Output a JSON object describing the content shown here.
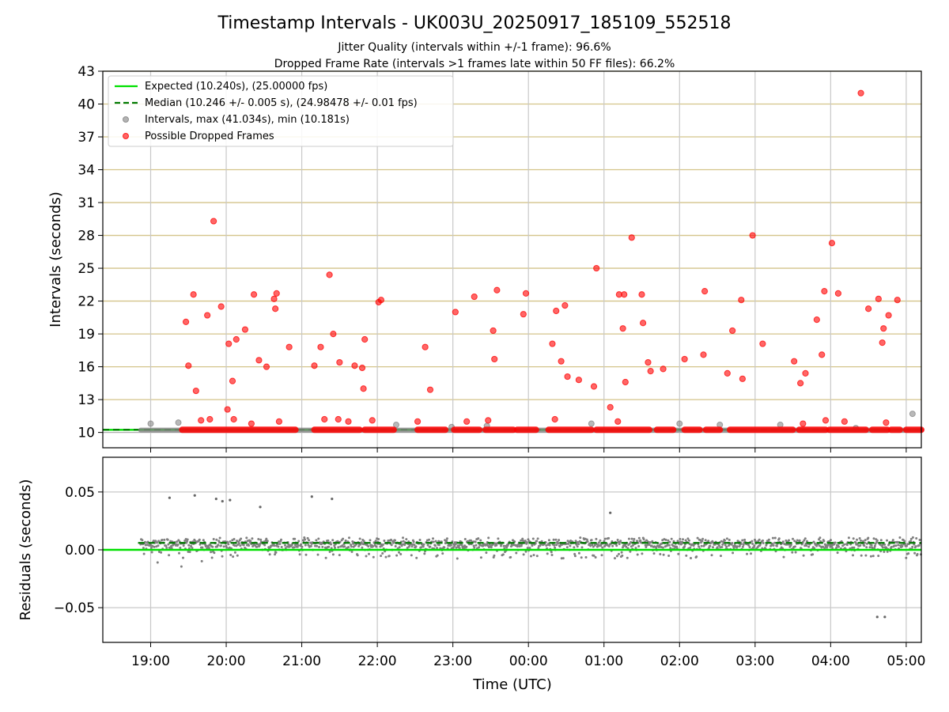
{
  "chart_data": [
    {
      "type": "scatter",
      "title": "Timestamp Intervals - UK003U_20250917_185109_552518",
      "subtitles": [
        "Jitter Quality (intervals within +/-1 frame): 96.6%",
        "Dropped Frame Rate (intervals >1 frames late within 50 FF files): 66.2%"
      ],
      "xlabel": "",
      "ylabel": "Intervals (seconds)",
      "ylim": [
        8.6,
        43
      ],
      "yticks": [
        10,
        13,
        16,
        19,
        22,
        25,
        28,
        31,
        34,
        37,
        40,
        43
      ],
      "xlim": [
        "2025-09-17 18:22",
        "2025-09-18 05:12"
      ],
      "xticks": [
        "19:00",
        "20:00",
        "21:00",
        "22:00",
        "23:00",
        "00:00",
        "01:00",
        "02:00",
        "03:00",
        "04:00",
        "05:00"
      ],
      "grid": true,
      "legend": {
        "placement": "top-left",
        "entries": [
          "Expected (10.240s), (25.00000 fps)",
          "Median (10.246 +/- 0.005 s), (24.98478 +/- 0.01 fps)",
          "Intervals, max (41.034s), min (10.181s)",
          "Possible Dropped Frames"
        ]
      },
      "lines": {
        "expected": 10.24,
        "median": 10.246
      },
      "series": [
        {
          "name": "Intervals, max (41.034s), min (10.181s)",
          "color": "#808080",
          "x": [
            "2025-09-17 19:00",
            "2025-09-17 19:22",
            "2025-09-17 22:15",
            "2025-09-17 22:59",
            "2025-09-17 23:27",
            "2025-09-18 00:50",
            "2025-09-18 02:00",
            "2025-09-18 02:32",
            "2025-09-18 03:20",
            "2025-09-18 04:20",
            "2025-09-18 05:05"
          ],
          "y": [
            10.8,
            10.9,
            10.7,
            10.5,
            10.6,
            10.8,
            10.8,
            10.7,
            10.7,
            10.4,
            11.7
          ]
        },
        {
          "name": "Possible Dropped Frames",
          "color": "#ff0000",
          "segments": [
            [
              "2025-09-17 19:25",
              "2025-09-17 20:55"
            ],
            [
              "2025-09-17 21:10",
              "2025-09-17 21:46"
            ],
            [
              "2025-09-17 21:50",
              "2025-09-17 22:13"
            ],
            [
              "2025-09-17 22:32",
              "2025-09-17 22:54"
            ],
            [
              "2025-09-17 23:01",
              "2025-09-17 23:21"
            ],
            [
              "2025-09-17 23:26",
              "2025-09-17 23:48"
            ],
            [
              "2025-09-17 23:51",
              "2025-09-18 00:06"
            ],
            [
              "2025-09-18 00:16",
              "2025-09-18 00:50"
            ],
            [
              "2025-09-18 00:54",
              "2025-09-18 01:36"
            ],
            [
              "2025-09-18 01:42",
              "2025-09-18 01:55"
            ],
            [
              "2025-09-18 02:04",
              "2025-09-18 02:16"
            ],
            [
              "2025-09-18 02:21",
              "2025-09-18 02:32"
            ],
            [
              "2025-09-18 02:40",
              "2025-09-18 03:30"
            ],
            [
              "2025-09-18 03:35",
              "2025-09-18 03:56"
            ],
            [
              "2025-09-18 03:59",
              "2025-09-18 04:28"
            ],
            [
              "2025-09-18 04:33",
              "2025-09-18 04:45"
            ],
            [
              "2025-09-18 04:48",
              "2025-09-18 04:55"
            ],
            [
              "2025-09-18 05:00",
              "2025-09-18 05:12"
            ]
          ],
          "segment_value": 10.24,
          "x": [
            "2025-09-17 19:28",
            "2025-09-17 19:30",
            "2025-09-17 19:34",
            "2025-09-17 19:36",
            "2025-09-17 19:40",
            "2025-09-17 19:45",
            "2025-09-17 19:47",
            "2025-09-17 19:50",
            "2025-09-17 19:56",
            "2025-09-17 20:01",
            "2025-09-17 20:02",
            "2025-09-17 20:05",
            "2025-09-17 20:06",
            "2025-09-17 20:08",
            "2025-09-17 20:15",
            "2025-09-17 20:20",
            "2025-09-17 20:22",
            "2025-09-17 20:26",
            "2025-09-17 20:32",
            "2025-09-17 20:38",
            "2025-09-17 20:39",
            "2025-09-17 20:40",
            "2025-09-17 20:42",
            "2025-09-17 20:50",
            "2025-09-17 21:10",
            "2025-09-17 21:15",
            "2025-09-17 21:18",
            "2025-09-17 21:22",
            "2025-09-17 21:25",
            "2025-09-17 21:29",
            "2025-09-17 21:30",
            "2025-09-17 21:37",
            "2025-09-17 21:42",
            "2025-09-17 21:48",
            "2025-09-17 21:49",
            "2025-09-17 21:50",
            "2025-09-17 21:56",
            "2025-09-17 22:01",
            "2025-09-17 22:03",
            "2025-09-17 22:32",
            "2025-09-17 22:38",
            "2025-09-17 22:42",
            "2025-09-17 23:02",
            "2025-09-17 23:11",
            "2025-09-17 23:17",
            "2025-09-17 23:28",
            "2025-09-17 23:32",
            "2025-09-17 23:33",
            "2025-09-17 23:35",
            "2025-09-17 23:56",
            "2025-09-17 23:58",
            "2025-09-18 00:19",
            "2025-09-18 00:21",
            "2025-09-18 00:22",
            "2025-09-18 00:26",
            "2025-09-18 00:29",
            "2025-09-18 00:31",
            "2025-09-18 00:40",
            "2025-09-18 00:52",
            "2025-09-18 00:54",
            "2025-09-18 01:05",
            "2025-09-18 01:11",
            "2025-09-18 01:12",
            "2025-09-18 01:15",
            "2025-09-18 01:16",
            "2025-09-18 01:17",
            "2025-09-18 01:22",
            "2025-09-18 01:30",
            "2025-09-18 01:31",
            "2025-09-18 01:35",
            "2025-09-18 01:37",
            "2025-09-18 01:47",
            "2025-09-18 02:04",
            "2025-09-18 02:19",
            "2025-09-18 02:20",
            "2025-09-18 02:38",
            "2025-09-18 02:42",
            "2025-09-18 02:49",
            "2025-09-18 02:50",
            "2025-09-18 02:58",
            "2025-09-18 03:06",
            "2025-09-18 03:31",
            "2025-09-18 03:36",
            "2025-09-18 03:38",
            "2025-09-18 03:40",
            "2025-09-18 03:49",
            "2025-09-18 03:53",
            "2025-09-18 03:55",
            "2025-09-18 03:56",
            "2025-09-18 04:01",
            "2025-09-18 04:06",
            "2025-09-18 04:11",
            "2025-09-18 04:24",
            "2025-09-18 04:30",
            "2025-09-18 04:38",
            "2025-09-18 04:41",
            "2025-09-18 04:42",
            "2025-09-18 04:44",
            "2025-09-18 04:46",
            "2025-09-18 04:53"
          ],
          "y": [
            20.1,
            16.1,
            22.6,
            13.8,
            11.1,
            20.7,
            11.2,
            29.3,
            21.5,
            12.1,
            18.1,
            14.7,
            11.2,
            18.5,
            19.4,
            10.8,
            22.6,
            16.6,
            16.0,
            22.2,
            21.3,
            22.7,
            11.0,
            17.8,
            16.1,
            17.8,
            11.2,
            24.4,
            19.0,
            11.2,
            16.4,
            11.0,
            16.1,
            15.9,
            14.0,
            18.5,
            11.1,
            21.9,
            22.1,
            11.0,
            17.8,
            13.9,
            21.0,
            11.0,
            22.4,
            11.1,
            19.3,
            16.7,
            23.0,
            20.8,
            22.7,
            18.1,
            11.2,
            21.1,
            16.5,
            21.6,
            15.1,
            14.8,
            14.2,
            25.0,
            12.3,
            11.0,
            22.6,
            19.5,
            22.6,
            14.6,
            27.8,
            22.6,
            20.0,
            16.4,
            15.6,
            15.8,
            16.7,
            17.1,
            22.9,
            15.4,
            19.3,
            22.1,
            14.9,
            28.0,
            18.1,
            16.5,
            14.5,
            10.8,
            15.4,
            20.3,
            17.1,
            22.9,
            11.1,
            27.3,
            22.7,
            11.0,
            41.0,
            21.3,
            22.2,
            18.2,
            19.5,
            10.9,
            20.7,
            22.1
          ]
        }
      ]
    },
    {
      "type": "scatter",
      "title": "",
      "xlabel": "Time (UTC)",
      "ylabel": "Residuals (seconds)",
      "ylim": [
        -0.08,
        0.08
      ],
      "yticks": [
        0.05,
        0.0,
        -0.05
      ],
      "ytick_labels": [
        "0.05",
        "0.00",
        "−0.05"
      ],
      "xlim": [
        "2025-09-17 18:22",
        "2025-09-18 05:12"
      ],
      "xticks": [
        "19:00",
        "20:00",
        "21:00",
        "22:00",
        "23:00",
        "00:00",
        "01:00",
        "02:00",
        "03:00",
        "04:00",
        "05:00"
      ],
      "grid": true,
      "lines": {
        "expected": 0.0,
        "median": 0.006
      },
      "band": {
        "start": "2025-09-17 18:52",
        "end": "2025-09-18 05:12",
        "center": 0.005,
        "spread": 0.006
      },
      "series": [
        {
          "name": "",
          "color": "#666666",
          "x": [
            "2025-09-17 19:15",
            "2025-09-17 19:35",
            "2025-09-17 19:52",
            "2025-09-17 19:57",
            "2025-09-17 20:03",
            "2025-09-17 20:27",
            "2025-09-17 21:08",
            "2025-09-17 21:24",
            "2025-09-18 01:05",
            "2025-09-18 04:37",
            "2025-09-18 04:43"
          ],
          "y": [
            0.045,
            0.047,
            0.044,
            0.042,
            0.043,
            0.037,
            0.046,
            0.044,
            0.032,
            -0.058,
            -0.058
          ]
        }
      ]
    }
  ]
}
